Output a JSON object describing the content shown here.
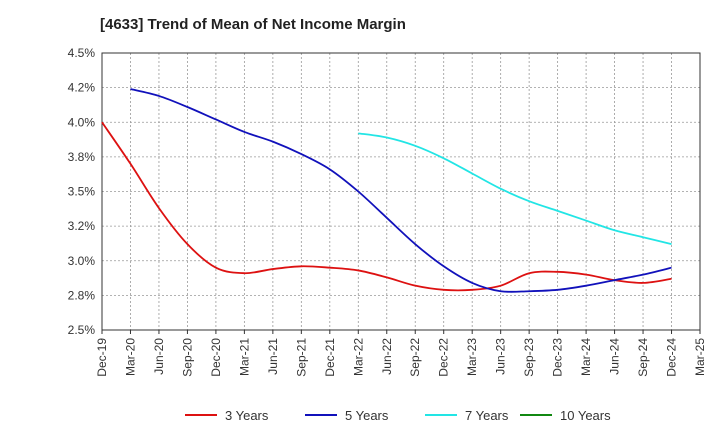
{
  "chart_data": {
    "type": "line",
    "title": "[4633]  Trend of Mean of Net Income Margin",
    "xlabel": "",
    "ylabel": "",
    "x": [
      "Dec-19",
      "Mar-20",
      "Jun-20",
      "Sep-20",
      "Dec-20",
      "Mar-21",
      "Jun-21",
      "Sep-21",
      "Dec-21",
      "Mar-22",
      "Jun-22",
      "Sep-22",
      "Dec-22",
      "Mar-23",
      "Jun-23",
      "Sep-23",
      "Dec-23",
      "Mar-24",
      "Jun-24",
      "Sep-24",
      "Dec-24",
      "Mar-25"
    ],
    "ylim": [
      2.5,
      4.5
    ],
    "yticks": [
      "2.5%",
      "2.8%",
      "3.0%",
      "3.2%",
      "3.5%",
      "3.8%",
      "4.0%",
      "4.2%",
      "4.5%"
    ],
    "grid": true,
    "legend_position": "bottom",
    "series": [
      {
        "name": "3 Years",
        "color": "#dd1111",
        "values": [
          4.0,
          3.7,
          3.38,
          3.12,
          2.95,
          2.91,
          2.94,
          2.96,
          2.95,
          2.93,
          2.88,
          2.82,
          2.79,
          2.79,
          2.82,
          2.91,
          2.92,
          2.9,
          2.86,
          2.84,
          2.87,
          null
        ]
      },
      {
        "name": "5 Years",
        "color": "#1111bb",
        "values": [
          null,
          4.24,
          4.19,
          4.11,
          4.02,
          3.93,
          3.86,
          3.77,
          3.66,
          3.5,
          3.31,
          3.12,
          2.96,
          2.84,
          2.78,
          2.78,
          2.79,
          2.82,
          2.86,
          2.9,
          2.95,
          null
        ]
      },
      {
        "name": "7 Years",
        "color": "#22e5e5",
        "values": [
          null,
          null,
          null,
          null,
          null,
          null,
          null,
          null,
          null,
          3.92,
          3.89,
          3.83,
          3.74,
          3.63,
          3.52,
          3.43,
          3.36,
          3.29,
          3.22,
          3.17,
          3.12,
          null
        ]
      },
      {
        "name": "10 Years",
        "color": "#118811",
        "values": [
          null,
          null,
          null,
          null,
          null,
          null,
          null,
          null,
          null,
          null,
          null,
          null,
          null,
          null,
          null,
          null,
          null,
          null,
          null,
          null,
          null,
          null
        ]
      }
    ]
  }
}
